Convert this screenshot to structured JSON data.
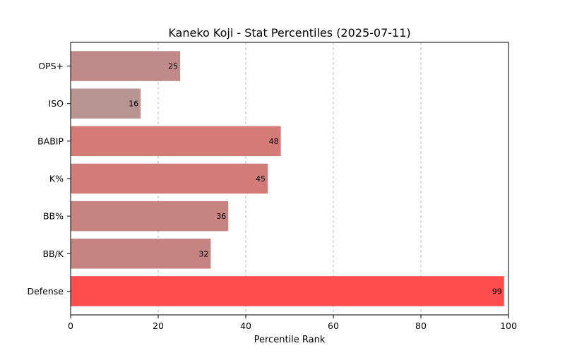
{
  "chart_data": {
    "type": "bar",
    "orientation": "horizontal",
    "title": "Kaneko Koji - Stat Percentiles (2025-07-11)",
    "xlabel": "Percentile Rank",
    "ylabel": "",
    "xlim": [
      0,
      100
    ],
    "xticks": [
      0,
      20,
      40,
      60,
      80,
      100
    ],
    "grid": "x-dashed",
    "categories": [
      "OPS+",
      "ISO",
      "BABIP",
      "K%",
      "BB%",
      "BB/K",
      "Defense"
    ],
    "values": [
      25,
      16,
      48,
      45,
      36,
      32,
      99
    ],
    "colors": [
      "#c18a8a",
      "#b89593",
      "#d47a77",
      "#d27b78",
      "#c78380",
      "#c58481",
      "#ff4c4c"
    ]
  }
}
